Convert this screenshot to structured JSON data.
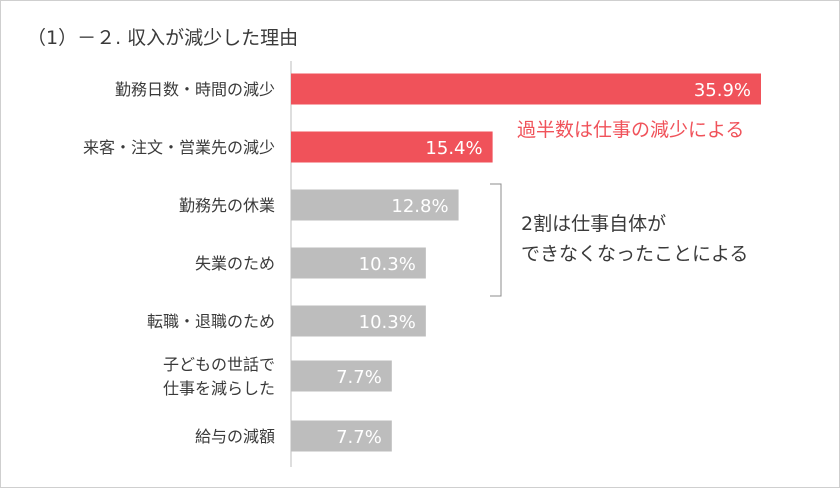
{
  "title": "（1）－２. 収入が減少した理由",
  "chart_data": {
    "type": "bar",
    "orientation": "horizontal",
    "categories": [
      "勤務日数・時間の減少",
      "来客・注文・営業先の減少",
      "勤務先の休業",
      "失業のため",
      "転職・退職のため",
      "子どもの世話で\n仕事を減らした",
      "給与の減額"
    ],
    "values": [
      35.9,
      15.4,
      12.8,
      10.3,
      10.3,
      7.7,
      7.7
    ],
    "value_labels": [
      "35.9%",
      "15.4%",
      "12.8%",
      "10.3%",
      "10.3%",
      "7.7%",
      "7.7%"
    ],
    "colors": [
      "#f0525a",
      "#f0525a",
      "#bdbdbd",
      "#bdbdbd",
      "#bdbdbd",
      "#bdbdbd",
      "#bdbdbd"
    ],
    "annotations": [
      {
        "text": "過半数は仕事の減少による",
        "color": "#f0525a"
      },
      {
        "text": "2割は仕事自体が\nできなくなったことによる",
        "color": "#3a3a3a"
      }
    ]
  }
}
